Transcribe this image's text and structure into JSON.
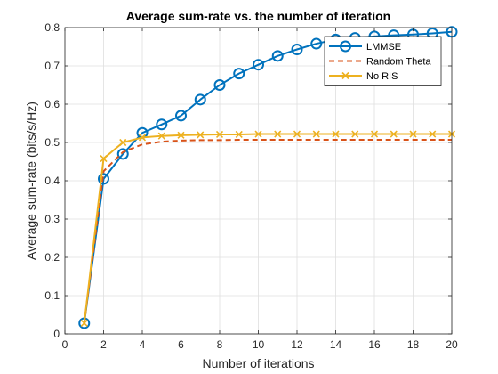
{
  "chart_data": {
    "type": "line",
    "title": "Average sum-rate vs. the number of iteration",
    "xlabel": "Number of iterations",
    "ylabel": "Average sum-rate (bits/s/Hz)",
    "xlim": [
      0,
      20
    ],
    "ylim": [
      0,
      0.8
    ],
    "xticks": [
      0,
      2,
      4,
      6,
      8,
      10,
      12,
      14,
      16,
      18,
      20
    ],
    "yticks": [
      0,
      0.1,
      0.2,
      0.3,
      0.4,
      0.5,
      0.6,
      0.7,
      0.8
    ],
    "xtick_labels": [
      "0",
      "2",
      "4",
      "6",
      "8",
      "10",
      "12",
      "14",
      "16",
      "18",
      "20"
    ],
    "ytick_labels": [
      "0",
      "0.1",
      "0.2",
      "0.3",
      "0.4",
      "0.5",
      "0.6",
      "0.7",
      "0.8"
    ],
    "grid": true,
    "legend_position": "top-right",
    "x": [
      1,
      2,
      3,
      4,
      5,
      6,
      7,
      8,
      9,
      10,
      11,
      12,
      13,
      14,
      15,
      16,
      17,
      18,
      19,
      20
    ],
    "series": [
      {
        "name": "LMMSE",
        "color": "#0072BD",
        "line_style": "solid",
        "marker": "circle",
        "values": [
          0.028,
          0.405,
          0.47,
          0.525,
          0.547,
          0.57,
          0.612,
          0.65,
          0.68,
          0.703,
          0.726,
          0.743,
          0.758,
          0.769,
          0.773,
          0.777,
          0.78,
          0.782,
          0.785,
          0.789
        ]
      },
      {
        "name": "Random Theta",
        "color": "#D95319",
        "line_style": "dashed",
        "marker": "none",
        "values": [
          0.028,
          0.425,
          0.475,
          0.495,
          0.502,
          0.505,
          0.506,
          0.506,
          0.507,
          0.507,
          0.507,
          0.507,
          0.507,
          0.507,
          0.507,
          0.507,
          0.507,
          0.507,
          0.507,
          0.507
        ]
      },
      {
        "name": "No RIS",
        "color": "#EDB120",
        "line_style": "solid",
        "marker": "x",
        "values": [
          0.028,
          0.458,
          0.5,
          0.513,
          0.517,
          0.519,
          0.52,
          0.521,
          0.521,
          0.522,
          0.522,
          0.522,
          0.522,
          0.522,
          0.522,
          0.522,
          0.522,
          0.522,
          0.522,
          0.522
        ]
      }
    ]
  }
}
